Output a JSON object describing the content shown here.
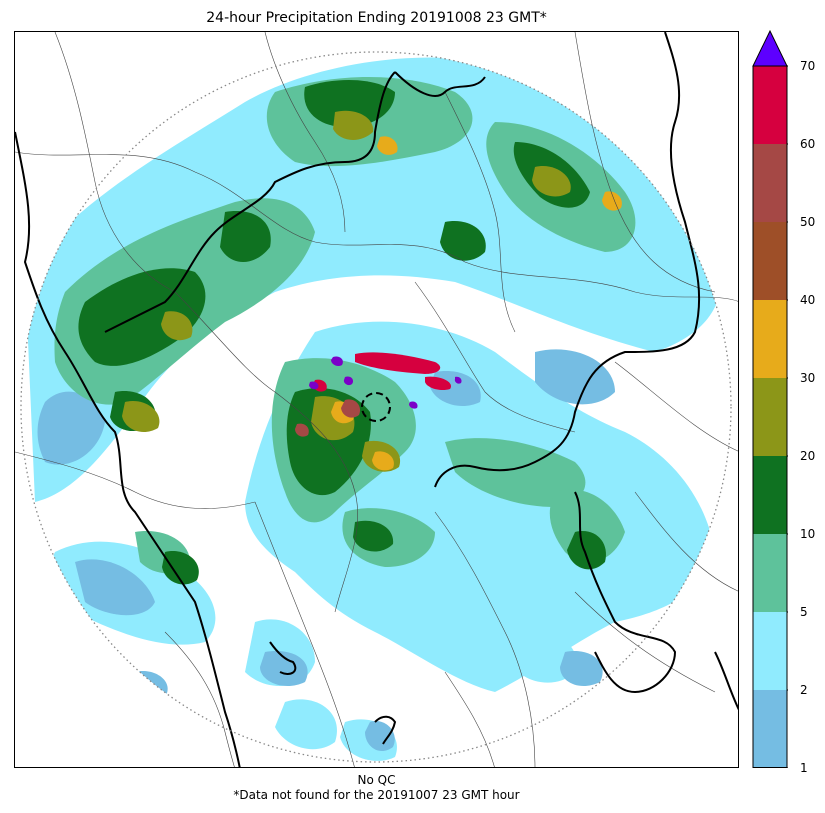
{
  "title": "24-hour Precipitation Ending 20191008 23 GMT*",
  "footer": {
    "qc_note": "No QC",
    "missing_note": "*Data not found for the 20191007 23 GMT hour"
  },
  "colorbar": {
    "ticks": [
      "1",
      "2",
      "5",
      "10",
      "20",
      "30",
      "40",
      "50",
      "60",
      "70"
    ],
    "bins": [
      {
        "from": 1,
        "to": 2,
        "color": "#75bde3"
      },
      {
        "from": 2,
        "to": 5,
        "color": "#90ebfe"
      },
      {
        "from": 5,
        "to": 10,
        "color": "#5ec29b"
      },
      {
        "from": 10,
        "to": 20,
        "color": "#0f7221"
      },
      {
        "from": 20,
        "to": 30,
        "color": "#8c9618"
      },
      {
        "from": 30,
        "to": 40,
        "color": "#e7ab1b"
      },
      {
        "from": 40,
        "to": 50,
        "color": "#9e4f28"
      },
      {
        "from": 50,
        "to": 60,
        "color": "#a54845"
      },
      {
        "from": 60,
        "to": 70,
        "color": "#d6003f"
      }
    ],
    "extend_color": "#5d00ff"
  },
  "map": {
    "radar_range_ring": "dotted-gray",
    "radar_site_marker": "dashed-circle",
    "colors": {
      "border_thick": "#000000",
      "border_thin": "#444444",
      "ring": "#888888",
      "extreme": "#7b00c8"
    }
  }
}
